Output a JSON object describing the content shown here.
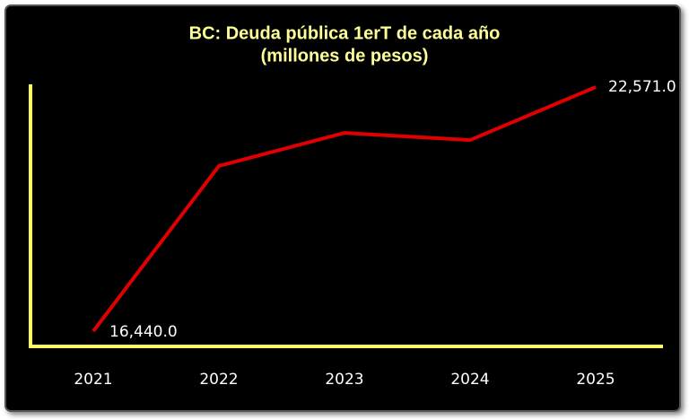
{
  "chart_data": {
    "type": "line",
    "title": "BC: Deuda pública 1erT de cada año",
    "subtitle": "(millones de pesos)",
    "categories": [
      "2021",
      "2022",
      "2023",
      "2024",
      "2025"
    ],
    "series": [
      {
        "name": "Deuda pública",
        "color": "#e00000",
        "values": [
          16440.0,
          20590,
          21420,
          21240,
          22571.0
        ],
        "value_labels": [
          "16,440.0",
          null,
          null,
          null,
          "22,571.0"
        ]
      }
    ],
    "ylim": [
      16000,
      23000
    ],
    "axis_color": "#ffff66"
  }
}
